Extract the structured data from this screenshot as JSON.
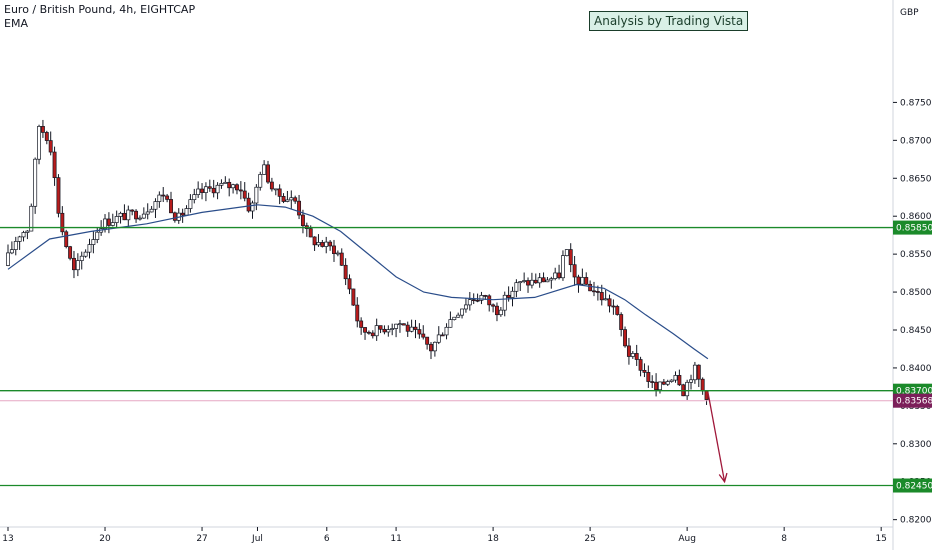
{
  "header": {
    "symbol_line": "Euro / British Pound, 4h, EIGHTCAP",
    "indicator_label": "EMA",
    "annotation": "Analysis by Trading Vista"
  },
  "colors": {
    "bull": "#ffffff",
    "bear": "#b71c1c",
    "wick": "#131722",
    "ema": "#2a4d8a",
    "levels": "#1b8a2a",
    "price_line": "#e6a7c4",
    "price_badge": "#7b1f5a",
    "arrow": "#a0183a"
  },
  "chart_data": {
    "type": "candlestick",
    "currency_label": "GBP",
    "y_range": [
      0.816,
      0.8885
    ],
    "y_ticks": [
      "0.87500",
      "0.87000",
      "0.86500",
      "0.86000",
      "0.85500",
      "0.85000",
      "0.84500",
      "0.84000",
      "0.83500",
      "0.83000",
      "0.82500",
      "0.82000"
    ],
    "x_ticks": [
      {
        "label": "13",
        "day": 0
      },
      {
        "label": "20",
        "day": 7
      },
      {
        "label": "27",
        "day": 14
      },
      {
        "label": "Jul",
        "day": 18
      },
      {
        "label": "6",
        "day": 23
      },
      {
        "label": "11",
        "day": 28
      },
      {
        "label": "18",
        "day": 35
      },
      {
        "label": "25",
        "day": 42
      },
      {
        "label": "Aug",
        "day": 49
      },
      {
        "label": "8",
        "day": 56
      },
      {
        "label": "15",
        "day": 63
      }
    ],
    "price_path": [
      [
        0,
        0.8535
      ],
      [
        1,
        0.8575
      ],
      [
        1.8,
        0.8585
      ],
      [
        2.5,
        0.872
      ],
      [
        3.3,
        0.87
      ],
      [
        4,
        0.8595
      ],
      [
        5,
        0.8525
      ],
      [
        6,
        0.856
      ],
      [
        7,
        0.859
      ],
      [
        8.5,
        0.86
      ],
      [
        10,
        0.8605
      ],
      [
        11.5,
        0.863
      ],
      [
        12.5,
        0.8595
      ],
      [
        14,
        0.863
      ],
      [
        15.5,
        0.864
      ],
      [
        17,
        0.864
      ],
      [
        17.8,
        0.8605
      ],
      [
        18.6,
        0.867
      ],
      [
        19.5,
        0.863
      ],
      [
        21,
        0.862
      ],
      [
        22,
        0.857
      ],
      [
        24,
        0.8555
      ],
      [
        25,
        0.85
      ],
      [
        25.7,
        0.8448
      ],
      [
        27,
        0.845
      ],
      [
        28.5,
        0.846
      ],
      [
        30,
        0.844
      ],
      [
        30.8,
        0.8425
      ],
      [
        32,
        0.846
      ],
      [
        33.5,
        0.849
      ],
      [
        34.5,
        0.8495
      ],
      [
        35.5,
        0.8475
      ],
      [
        37,
        0.851
      ],
      [
        38.5,
        0.8515
      ],
      [
        40,
        0.852
      ],
      [
        40.5,
        0.856
      ],
      [
        41,
        0.852
      ],
      [
        42,
        0.851
      ],
      [
        43,
        0.8495
      ],
      [
        44,
        0.848
      ],
      [
        45,
        0.842
      ],
      [
        46,
        0.84
      ],
      [
        47,
        0.837
      ],
      [
        48.5,
        0.8395
      ],
      [
        49,
        0.837
      ],
      [
        49.8,
        0.84
      ],
      [
        50.5,
        0.8365
      ]
    ],
    "ema_path": [
      [
        0,
        0.853
      ],
      [
        3,
        0.857
      ],
      [
        6,
        0.858
      ],
      [
        10,
        0.859
      ],
      [
        14,
        0.8605
      ],
      [
        18,
        0.8615
      ],
      [
        20,
        0.8612
      ],
      [
        22,
        0.86
      ],
      [
        24,
        0.858
      ],
      [
        26,
        0.855
      ],
      [
        28,
        0.852
      ],
      [
        30,
        0.85
      ],
      [
        32,
        0.8493
      ],
      [
        35,
        0.849
      ],
      [
        38,
        0.8493
      ],
      [
        41,
        0.851
      ],
      [
        43,
        0.8505
      ],
      [
        44.5,
        0.849
      ],
      [
        46,
        0.847
      ],
      [
        48,
        0.8445
      ],
      [
        49.5,
        0.8425
      ],
      [
        50.5,
        0.8412
      ]
    ],
    "horizontal_levels": [
      {
        "price": 0.8585,
        "label": "0.85850"
      },
      {
        "price": 0.837,
        "label": "0.83700"
      },
      {
        "price": 0.8245,
        "label": "0.82450"
      }
    ],
    "last_price": {
      "price": 0.83568,
      "label": "0.83568"
    },
    "projection_arrow": {
      "from": [
        50.5,
        0.8368
      ],
      "to": [
        51.7,
        0.825
      ]
    }
  }
}
